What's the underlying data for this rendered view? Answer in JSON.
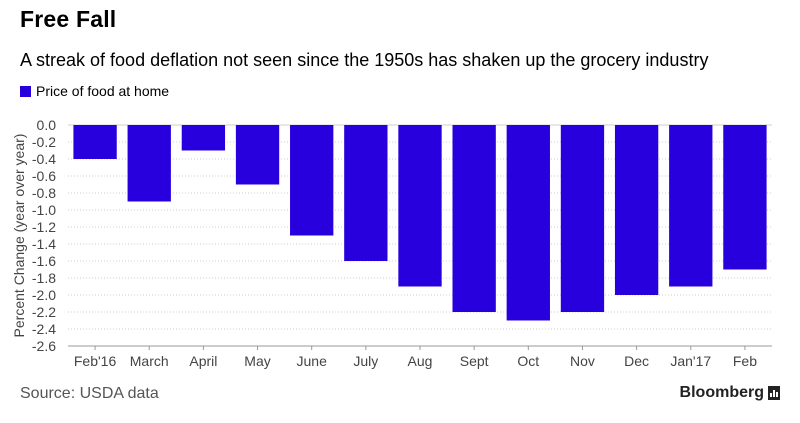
{
  "header": {
    "title": "Free Fall",
    "subtitle": "A streak of food deflation not seen since the 1950s has shaken up the grocery industry"
  },
  "legend": {
    "label": "Price of food at home"
  },
  "footer": {
    "source": "Source: USDA data",
    "brand": "Bloomberg"
  },
  "colors": {
    "bar": "#2800dd",
    "grid": "#cfcfcf",
    "axis_text": "#444444"
  },
  "chart_data": {
    "type": "bar",
    "title": "Free Fall",
    "xlabel": "",
    "ylabel": "Percent Change (year over year)",
    "categories": [
      "Feb'16",
      "March",
      "April",
      "May",
      "June",
      "July",
      "Aug",
      "Sept",
      "Oct",
      "Nov",
      "Dec",
      "Jan'17",
      "Feb"
    ],
    "series": [
      {
        "name": "Price of food at home",
        "values": [
          -0.4,
          -0.9,
          -0.3,
          -0.7,
          -1.3,
          -1.6,
          -1.9,
          -2.2,
          -2.3,
          -2.2,
          -2.0,
          -1.9,
          -1.7
        ]
      }
    ],
    "ylim": [
      -2.6,
      0.0
    ],
    "yticks": [
      "0.0",
      "-0.2",
      "-0.4",
      "-0.6",
      "-0.8",
      "-1.0",
      "-1.2",
      "-1.4",
      "-1.6",
      "-1.8",
      "-2.0",
      "-2.2",
      "-2.4",
      "-2.6"
    ],
    "grid": true,
    "legend_position": "top-left"
  }
}
